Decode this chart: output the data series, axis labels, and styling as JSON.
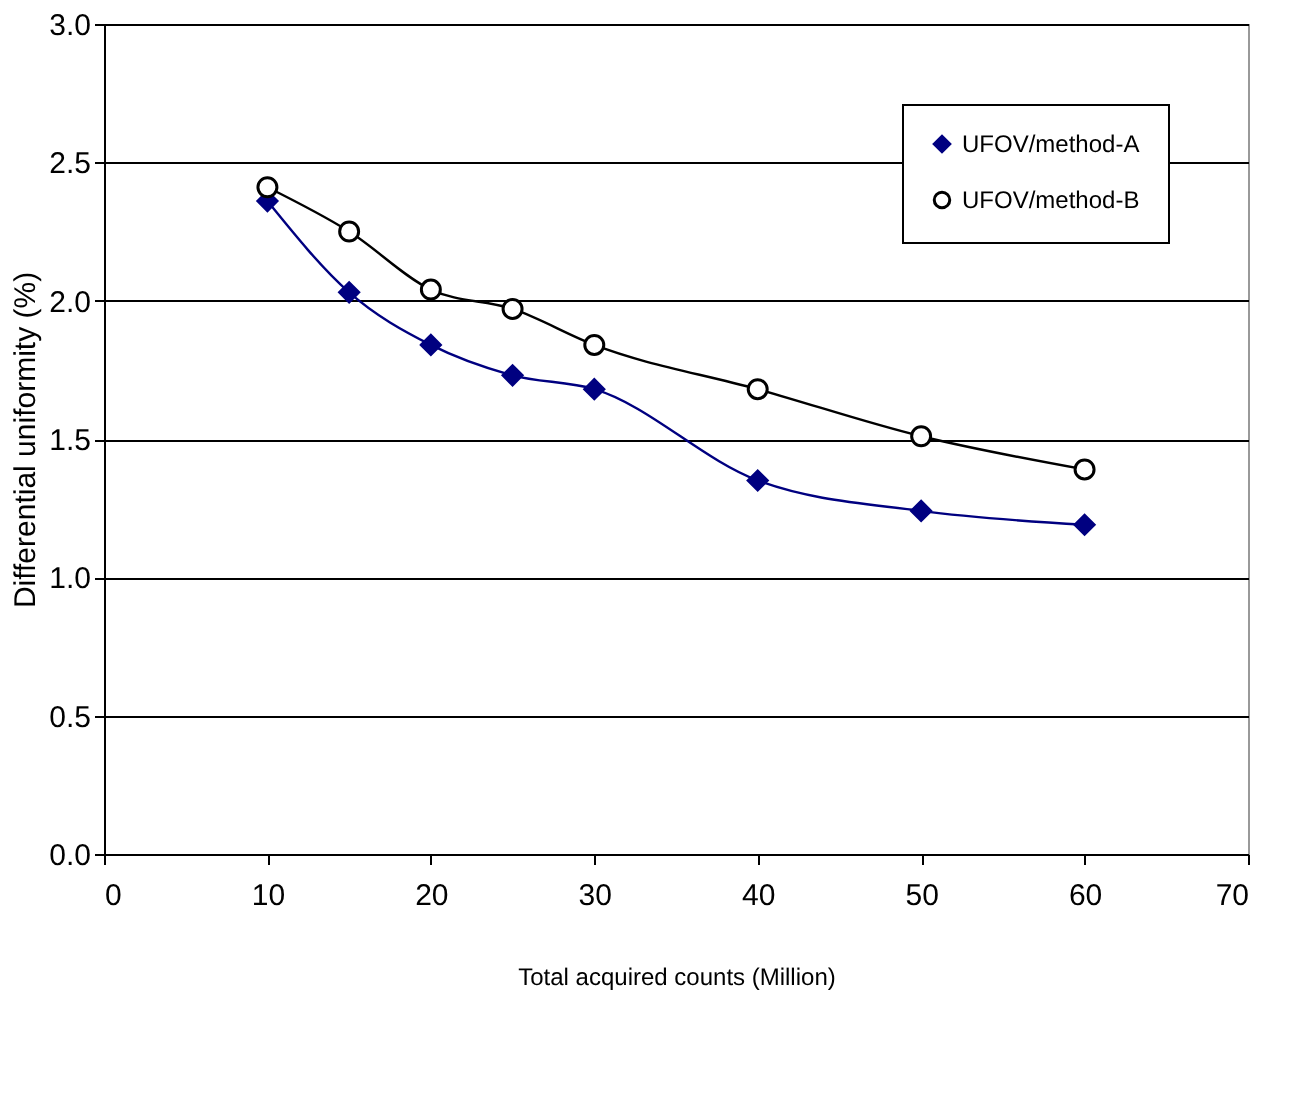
{
  "chart_data": {
    "type": "line",
    "xlabel": "Total acquired counts (Million)",
    "ylabel": "Differential uniformity (%)",
    "x": [
      10,
      15,
      20,
      25,
      30,
      40,
      50,
      60
    ],
    "series": [
      {
        "name": "UFOV/method-A",
        "color": "#000080",
        "marker": "diamond",
        "values": [
          2.36,
          2.03,
          1.84,
          1.73,
          1.68,
          1.35,
          1.24,
          1.19
        ]
      },
      {
        "name": "UFOV/method-B",
        "color": "#000000",
        "marker": "circle",
        "values": [
          2.41,
          2.25,
          2.04,
          1.97,
          1.84,
          1.68,
          1.51,
          1.39
        ]
      }
    ],
    "xlim": [
      0,
      70
    ],
    "xticks": [
      0,
      10,
      20,
      30,
      40,
      50,
      60,
      70
    ],
    "ylim": [
      0,
      3
    ],
    "yticks": [
      {
        "value": 0,
        "label": "0.0"
      },
      0.5,
      {
        "value": 1,
        "label": "1.0"
      },
      1.5,
      {
        "value": 2,
        "label": "2.0"
      },
      2.5,
      {
        "value": 3,
        "label": "3.0"
      }
    ],
    "grid": "y",
    "legend": "top right"
  }
}
